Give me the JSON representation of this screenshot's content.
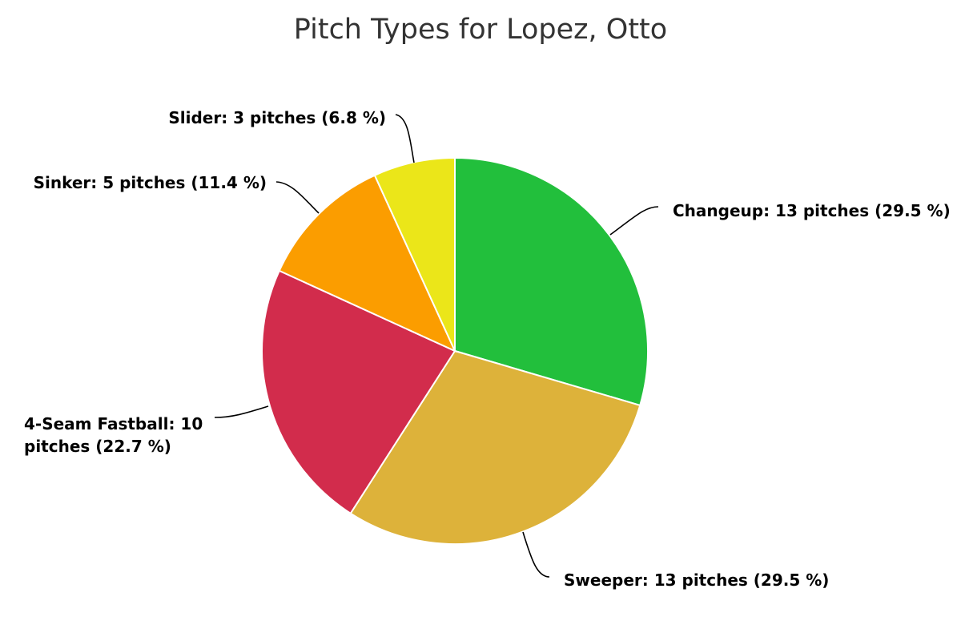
{
  "chart_data": {
    "type": "pie",
    "title": "Pitch Types for Lopez, Otto",
    "slices": [
      {
        "name": "Changeup",
        "value": 13,
        "label": "Changeup: 13 pitches (29.5 %)",
        "color": "#22bf3c"
      },
      {
        "name": "Sweeper",
        "value": 13,
        "label": "Sweeper: 13 pitches (29.5 %)",
        "color": "#ddb23a"
      },
      {
        "name": "4-Seam Fastball",
        "value": 10,
        "label_lines": [
          "4-Seam Fastball: 10",
          "pitches (22.7 %)"
        ],
        "color": "#d22c4c"
      },
      {
        "name": "Sinker",
        "value": 5,
        "label": "Sinker: 5 pitches (11.4 %)",
        "color": "#fb9d00"
      },
      {
        "name": "Slider",
        "value": 3,
        "label": "Slider: 3 pitches (6.8 %)",
        "color": "#ebe619"
      }
    ]
  }
}
